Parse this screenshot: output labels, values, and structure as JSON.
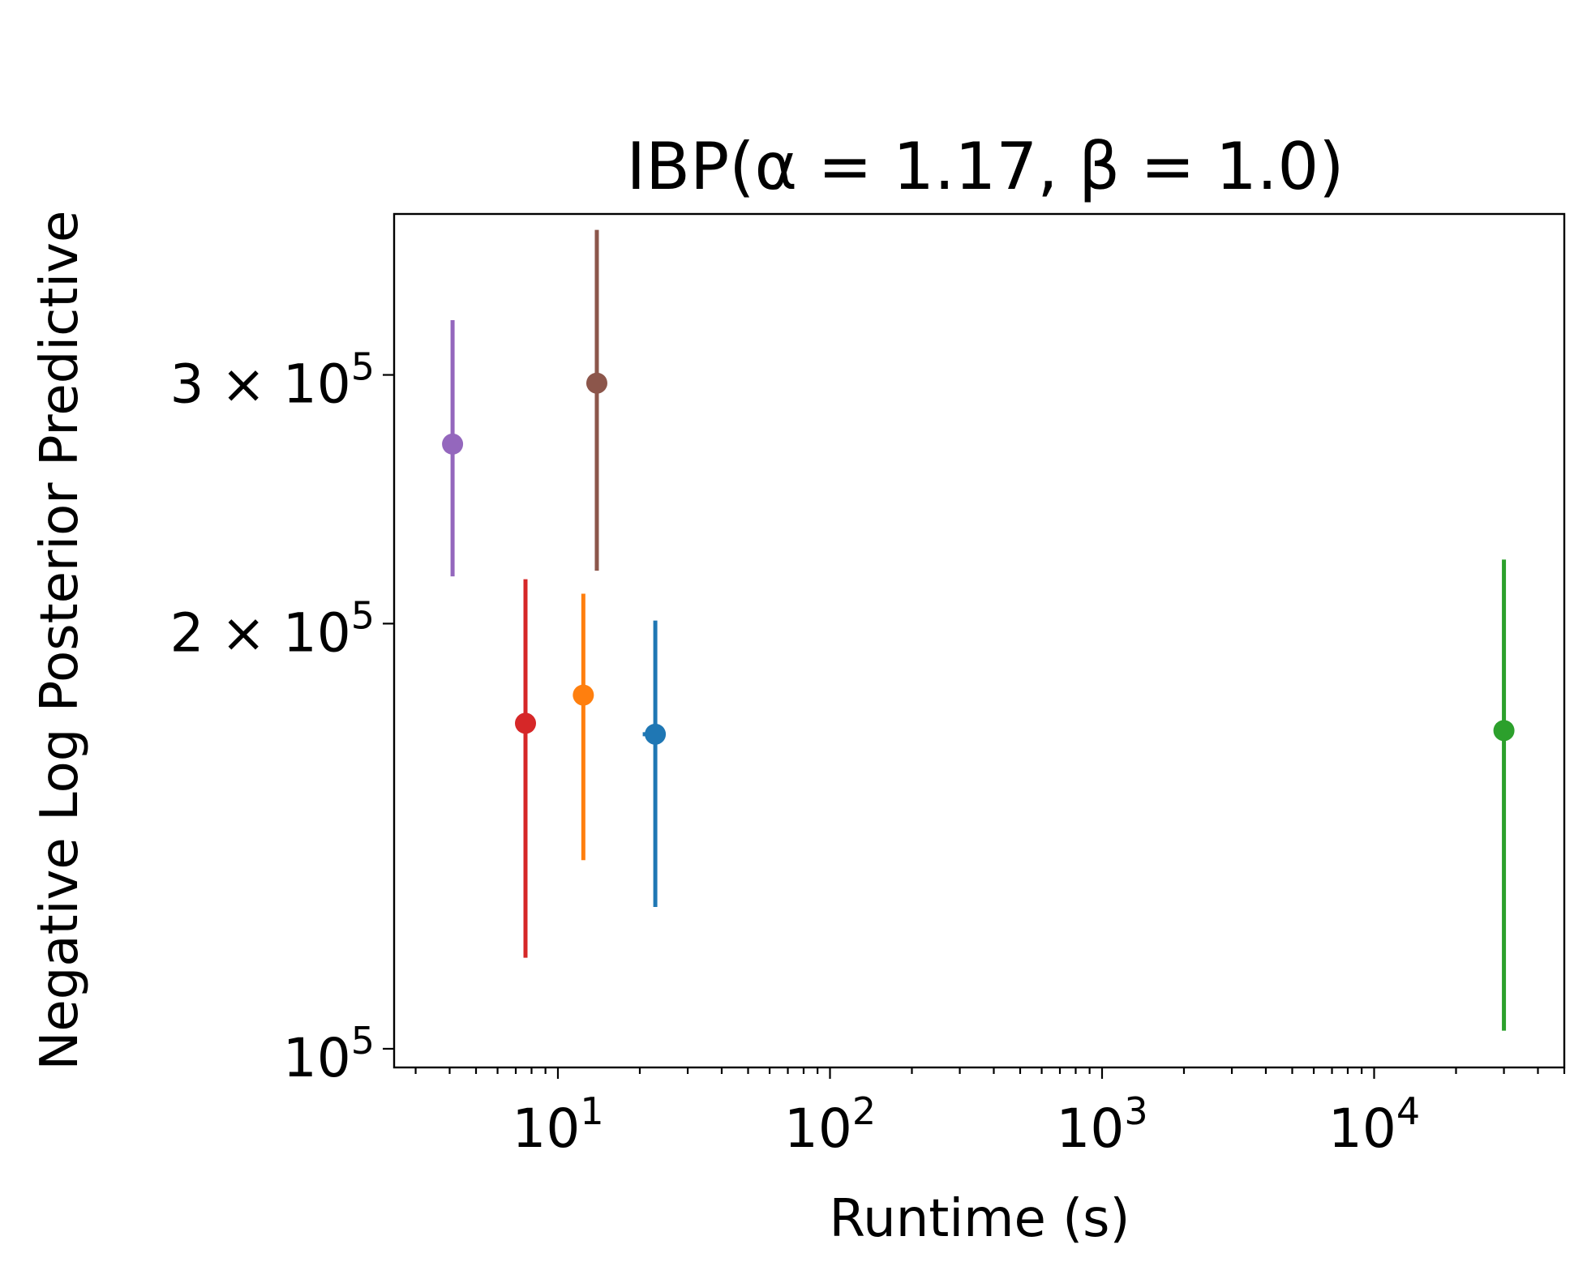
{
  "chart_data": {
    "type": "scatter",
    "title": "IBP(α = 1.17, β = 1.0)",
    "xlabel": "Runtime (s)",
    "ylabel": "Negative Log Posterior Predictive",
    "x_scale": "log",
    "y_scale": "log",
    "xlim": [
      2.5,
      50000
    ],
    "ylim": [
      97000,
      390000
    ],
    "x_ticks": [
      {
        "value": 10,
        "base": "10",
        "exp": "1"
      },
      {
        "value": 100,
        "base": "10",
        "exp": "2"
      },
      {
        "value": 1000,
        "base": "10",
        "exp": "3"
      },
      {
        "value": 10000,
        "base": "10",
        "exp": "4"
      }
    ],
    "y_ticks": [
      {
        "value": 100000,
        "mant": "",
        "base": "10",
        "exp": "5"
      },
      {
        "value": 200000,
        "mant": "2 × ",
        "base": "10",
        "exp": "5"
      },
      {
        "value": 300000,
        "mant": "3 × ",
        "base": "10",
        "exp": "5"
      }
    ],
    "grid": false,
    "points": [
      {
        "x": 4.1,
        "y": 268000,
        "y_low": 216000,
        "y_high": 328000,
        "color": "#9467bd"
      },
      {
        "x": 13.9,
        "y": 296000,
        "y_low": 218000,
        "y_high": 380000,
        "color": "#8c564b"
      },
      {
        "x": 7.6,
        "y": 170000,
        "y_low": 116000,
        "y_high": 215000,
        "color": "#d62728"
      },
      {
        "x": 12.4,
        "y": 178000,
        "y_low": 136000,
        "y_high": 210000,
        "color": "#ff7f0e"
      },
      {
        "x": 22.8,
        "y": 167000,
        "y_low": 126000,
        "y_high": 201000,
        "x_low": 20.5,
        "x_high": 22.8,
        "color": "#1f77b4"
      },
      {
        "x": 30000,
        "y": 168000,
        "y_low": 103000,
        "y_high": 222000,
        "color": "#2ca02c"
      }
    ]
  }
}
